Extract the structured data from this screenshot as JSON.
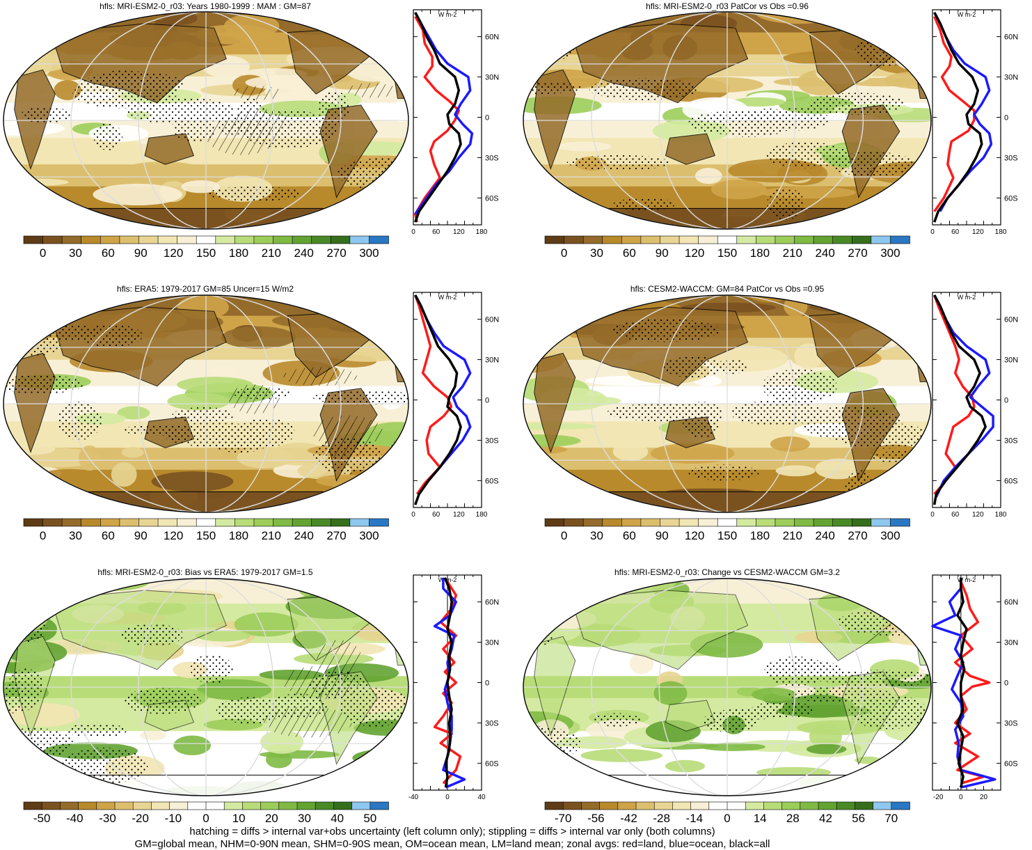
{
  "footer": {
    "line1": "hatching = diffs > internal var+obs uncertainty (left column only); stippling = diffs > internal var only (both columns)",
    "line2": "GM=global mean, NHM=0-90N mean, SHM=0-90S mean, OM=ocean mean, LM=land mean; zonal avgs: red=land, blue=ocean, black=all"
  },
  "colors": {
    "land": "#ff1a1a",
    "ocean": "#1a1aff",
    "all": "#000000",
    "abs_scale": [
      "#5e3c16",
      "#7a5220",
      "#946b2a",
      "#b88a2c",
      "#cfa449",
      "#dcbf6e",
      "#e8d594",
      "#f2e6b4",
      "#f8f0d6",
      "#ffffff",
      "#d4eaa0",
      "#b8dc78",
      "#9ccd5a",
      "#80ba45",
      "#63a332",
      "#4a8a26",
      "#356f1c",
      "#8ec7ef",
      "#2a78c4"
    ],
    "diff_scale": [
      "#5e3c16",
      "#7a5220",
      "#946b2a",
      "#b88a2c",
      "#cfa449",
      "#dcbf6e",
      "#e8d594",
      "#f2e6b4",
      "#f8f0d6",
      "#ffffff",
      "#ffffff",
      "#d4eaa0",
      "#b8dc78",
      "#9ccd5a",
      "#80ba45",
      "#63a332",
      "#4a8a26",
      "#356f1c",
      "#8ec7ef",
      "#2a78c4"
    ]
  },
  "panels": [
    {
      "id": "p1",
      "title": "hfls: MRI-ESM2-0_r03: Years 1980-1999 : MAM : GM=87",
      "kind": "absolute",
      "cbar_labels": [
        "0",
        "30",
        "60",
        "90",
        "120",
        "150",
        "180",
        "210",
        "240",
        "270",
        "300"
      ]
    },
    {
      "id": "p2",
      "title": "hfls: MRI-ESM2-0_r03 PatCor vs Obs =0.96",
      "kind": "absolute",
      "cbar_labels": [
        "0",
        "30",
        "60",
        "90",
        "120",
        "150",
        "180",
        "210",
        "240",
        "270",
        "300"
      ]
    },
    {
      "id": "p3",
      "title": "hfls: ERA5: 1979-2017 GM=85 Uncer=15 W/m2",
      "kind": "absolute",
      "cbar_labels": [
        "0",
        "30",
        "60",
        "90",
        "120",
        "150",
        "180",
        "210",
        "240",
        "270",
        "300"
      ]
    },
    {
      "id": "p4",
      "title": "hfls: CESM2-WACCM: GM=84 PatCor vs Obs =0.95",
      "kind": "absolute",
      "cbar_labels": [
        "0",
        "30",
        "60",
        "90",
        "120",
        "150",
        "180",
        "210",
        "240",
        "270",
        "300"
      ]
    },
    {
      "id": "p5",
      "title": "hfls: MRI-ESM2-0_r03: Bias vs ERA5: 1979-2017 GM=1.5",
      "kind": "diff",
      "cbar_labels": [
        "-50",
        "-40",
        "-30",
        "-20",
        "-10",
        "0",
        "10",
        "20",
        "30",
        "40",
        "50"
      ]
    },
    {
      "id": "p6",
      "title": "hfls: MRI-ESM2-0_r03: Change vs CESM2-WACCM GM=3.2",
      "kind": "diff",
      "cbar_labels": [
        "-70",
        "-56",
        "-42",
        "-28",
        "-14",
        "0",
        "14",
        "28",
        "42",
        "56",
        "70"
      ]
    }
  ],
  "chart_data": [
    {
      "type": "line",
      "panel": "p1",
      "title": "hfls: MRI-ESM2-0_r03: Years 1980-1999 : MAM : GM=87",
      "xlabel": "W m-2",
      "xticks": [
        "0",
        "60",
        "120",
        "180"
      ],
      "xlim": [
        0,
        180
      ],
      "yticks": [
        "60N",
        "30N",
        "0",
        "30S",
        "60S"
      ],
      "ylim": [
        -80,
        80
      ],
      "series": [
        {
          "color": "land",
          "lat": [
            -78,
            -72,
            -60,
            -45,
            -35,
            -25,
            -18,
            -10,
            -2,
            5,
            12,
            20,
            30,
            38,
            45,
            55,
            65,
            75
          ],
          "values": [
            10,
            5,
            30,
            70,
            55,
            45,
            55,
            90,
            110,
            120,
            95,
            60,
            30,
            50,
            50,
            30,
            25,
            5
          ]
        },
        {
          "color": "ocean",
          "lat": [
            -72,
            -68,
            -60,
            -50,
            -40,
            -30,
            -20,
            -12,
            -5,
            2,
            10,
            20,
            30,
            40,
            50,
            60,
            70,
            78
          ],
          "values": [
            5,
            15,
            35,
            60,
            95,
            120,
            150,
            155,
            130,
            110,
            125,
            150,
            145,
            90,
            60,
            40,
            20,
            5
          ]
        },
        {
          "color": "all",
          "lat": [
            -78,
            -70,
            -60,
            -50,
            -40,
            -30,
            -20,
            -12,
            -5,
            2,
            10,
            20,
            30,
            40,
            50,
            60,
            70,
            78
          ],
          "values": [
            5,
            15,
            40,
            65,
            90,
            110,
            125,
            120,
            95,
            90,
            110,
            120,
            110,
            70,
            55,
            35,
            20,
            5
          ]
        }
      ]
    },
    {
      "type": "line",
      "panel": "p2",
      "title": "hfls: MRI-ESM2-0_r03 PatCor vs Obs =0.96",
      "xlabel": "W m-2",
      "xticks": [
        "0",
        "60",
        "120",
        "180"
      ],
      "xlim": [
        0,
        180
      ],
      "yticks": [
        "60N",
        "30N",
        "0",
        "30S",
        "60S"
      ],
      "ylim": [
        -80,
        80
      ],
      "series": [
        {
          "color": "land",
          "lat": [
            -70,
            -60,
            -45,
            -35,
            -25,
            -18,
            -10,
            -2,
            5,
            12,
            20,
            30,
            38,
            45,
            55,
            65,
            75
          ],
          "values": [
            5,
            30,
            55,
            40,
            45,
            50,
            95,
            110,
            110,
            80,
            45,
            25,
            45,
            50,
            30,
            20,
            5
          ]
        },
        {
          "color": "ocean",
          "lat": [
            -70,
            -60,
            -50,
            -40,
            -30,
            -20,
            -12,
            -5,
            2,
            10,
            20,
            30,
            40,
            50,
            60,
            70,
            78
          ],
          "values": [
            20,
            40,
            70,
            100,
            135,
            155,
            150,
            125,
            110,
            130,
            150,
            140,
            85,
            55,
            35,
            20,
            5
          ]
        },
        {
          "color": "all",
          "lat": [
            -78,
            -70,
            -60,
            -50,
            -40,
            -30,
            -20,
            -12,
            -5,
            2,
            10,
            20,
            30,
            40,
            50,
            60,
            70,
            78
          ],
          "values": [
            5,
            15,
            40,
            70,
            95,
            115,
            130,
            125,
            95,
            90,
            110,
            120,
            105,
            70,
            50,
            35,
            20,
            5
          ]
        }
      ]
    },
    {
      "type": "line",
      "panel": "p3",
      "title": "hfls: ERA5: 1979-2017 GM=85 Uncer=15 W/m2",
      "xlabel": "W m-2",
      "xticks": [
        "0",
        "60",
        "120",
        "180"
      ],
      "xlim": [
        0,
        180
      ],
      "yticks": [
        "60N",
        "30N",
        "0",
        "30S",
        "60S"
      ],
      "ylim": [
        -80,
        80
      ],
      "series": [
        {
          "color": "land",
          "lat": [
            -70,
            -62,
            -50,
            -40,
            -30,
            -20,
            -12,
            -5,
            2,
            10,
            20,
            30,
            40,
            50,
            60,
            70,
            78
          ],
          "values": [
            10,
            30,
            70,
            40,
            35,
            45,
            80,
            100,
            90,
            55,
            25,
            35,
            45,
            35,
            25,
            15,
            5
          ]
        },
        {
          "color": "ocean",
          "lat": [
            -70,
            -60,
            -50,
            -40,
            -30,
            -20,
            -12,
            -5,
            2,
            10,
            20,
            30,
            40,
            50,
            60,
            70,
            78
          ],
          "values": [
            15,
            40,
            70,
            100,
            130,
            150,
            140,
            115,
            105,
            130,
            150,
            135,
            80,
            55,
            35,
            20,
            5
          ]
        },
        {
          "color": "all",
          "lat": [
            -78,
            -70,
            -60,
            -50,
            -40,
            -30,
            -20,
            -12,
            -5,
            2,
            10,
            20,
            30,
            40,
            50,
            60,
            70,
            78
          ],
          "values": [
            5,
            15,
            40,
            70,
            95,
            115,
            125,
            115,
            90,
            95,
            110,
            115,
            95,
            65,
            50,
            35,
            20,
            5
          ]
        }
      ]
    },
    {
      "type": "line",
      "panel": "p4",
      "title": "hfls: CESM2-WACCM: GM=84 PatCor vs Obs =0.95",
      "xlabel": "W m-2",
      "xticks": [
        "0",
        "60",
        "120",
        "180"
      ],
      "xlim": [
        0,
        180
      ],
      "yticks": [
        "60N",
        "30N",
        "0",
        "30S",
        "60S"
      ],
      "ylim": [
        -80,
        80
      ],
      "series": [
        {
          "color": "land",
          "lat": [
            -70,
            -62,
            -50,
            -40,
            -30,
            -20,
            -12,
            -5,
            2,
            10,
            20,
            30,
            40,
            50,
            60,
            70,
            78
          ],
          "values": [
            5,
            30,
            60,
            35,
            45,
            55,
            95,
            110,
            105,
            80,
            60,
            70,
            60,
            45,
            30,
            15,
            5
          ]
        },
        {
          "color": "ocean",
          "lat": [
            -72,
            -60,
            -50,
            -40,
            -30,
            -20,
            -12,
            -5,
            2,
            10,
            20,
            30,
            40,
            50,
            60,
            70,
            78
          ],
          "values": [
            10,
            30,
            60,
            95,
            130,
            160,
            160,
            130,
            100,
            120,
            150,
            140,
            90,
            55,
            35,
            20,
            5
          ]
        },
        {
          "color": "all",
          "lat": [
            -78,
            -70,
            -60,
            -50,
            -40,
            -30,
            -20,
            -12,
            -5,
            2,
            10,
            20,
            30,
            40,
            50,
            60,
            70,
            78
          ],
          "values": [
            5,
            10,
            35,
            65,
            95,
            120,
            140,
            130,
            100,
            90,
            110,
            125,
            110,
            70,
            50,
            35,
            20,
            5
          ]
        }
      ]
    },
    {
      "type": "line",
      "panel": "p5",
      "title": "hfls: MRI-ESM2-0_r03: Bias vs ERA5: 1979-2017 GM=1.5",
      "xlabel": "W m-2",
      "xticks": [
        "-40",
        "0",
        "40"
      ],
      "xlim": [
        -40,
        40
      ],
      "yticks": [
        "60N",
        "30N",
        "0",
        "30S",
        "60S"
      ],
      "ylim": [
        -80,
        80
      ],
      "series": [
        {
          "color": "land",
          "lat": [
            -75,
            -65,
            -55,
            -45,
            -38,
            -33,
            -25,
            -15,
            -8,
            0,
            8,
            15,
            25,
            35,
            45,
            55,
            65,
            75
          ],
          "values": [
            -5,
            10,
            15,
            -8,
            5,
            -15,
            -5,
            5,
            -5,
            10,
            -3,
            8,
            -5,
            10,
            -8,
            5,
            10,
            0
          ]
        },
        {
          "color": "ocean",
          "lat": [
            -78,
            -72,
            -65,
            -55,
            -45,
            -35,
            -25,
            -15,
            -5,
            5,
            15,
            25,
            35,
            42,
            50,
            60,
            70,
            78
          ],
          "values": [
            -2,
            20,
            -5,
            0,
            3,
            5,
            5,
            0,
            -3,
            2,
            0,
            5,
            8,
            -15,
            3,
            10,
            -5,
            -5
          ]
        },
        {
          "color": "all",
          "lat": [
            -78,
            -70,
            -60,
            -50,
            -40,
            -30,
            -20,
            -10,
            0,
            10,
            20,
            30,
            40,
            50,
            60,
            70,
            78
          ],
          "values": [
            -2,
            0,
            -2,
            2,
            3,
            2,
            5,
            2,
            0,
            3,
            2,
            5,
            0,
            3,
            5,
            2,
            -3
          ]
        }
      ]
    },
    {
      "type": "line",
      "panel": "p6",
      "title": "hfls: MRI-ESM2-0_r03: Change vs CESM2-WACCM GM=3.2",
      "xlabel": "W m-2",
      "xticks": [
        "-20",
        "0",
        "20"
      ],
      "xlim": [
        -25,
        35
      ],
      "yticks": [
        "60N",
        "30N",
        "0",
        "30S",
        "60S"
      ],
      "ylim": [
        -80,
        80
      ],
      "series": [
        {
          "color": "land",
          "lat": [
            -75,
            -70,
            -65,
            -55,
            -45,
            -38,
            -30,
            -20,
            -10,
            -3,
            0,
            5,
            15,
            25,
            35,
            45,
            55,
            65,
            75
          ],
          "values": [
            0,
            20,
            -3,
            15,
            -5,
            8,
            -5,
            5,
            0,
            10,
            25,
            8,
            -5,
            10,
            0,
            15,
            8,
            5,
            0
          ]
        },
        {
          "color": "ocean",
          "lat": [
            -78,
            -72,
            -65,
            -55,
            -45,
            -35,
            -25,
            -15,
            -5,
            5,
            15,
            25,
            35,
            42,
            50,
            60,
            70,
            78
          ],
          "values": [
            0,
            30,
            0,
            -3,
            -2,
            -5,
            2,
            0,
            -8,
            -3,
            2,
            -5,
            0,
            -25,
            -5,
            -10,
            0,
            0
          ]
        },
        {
          "color": "all",
          "lat": [
            -78,
            -70,
            -60,
            -50,
            -40,
            -30,
            -20,
            -10,
            0,
            10,
            20,
            30,
            40,
            50,
            60,
            70,
            78
          ],
          "values": [
            0,
            2,
            -2,
            0,
            2,
            -3,
            2,
            0,
            0,
            3,
            0,
            2,
            5,
            -3,
            2,
            0,
            0
          ]
        }
      ]
    }
  ]
}
